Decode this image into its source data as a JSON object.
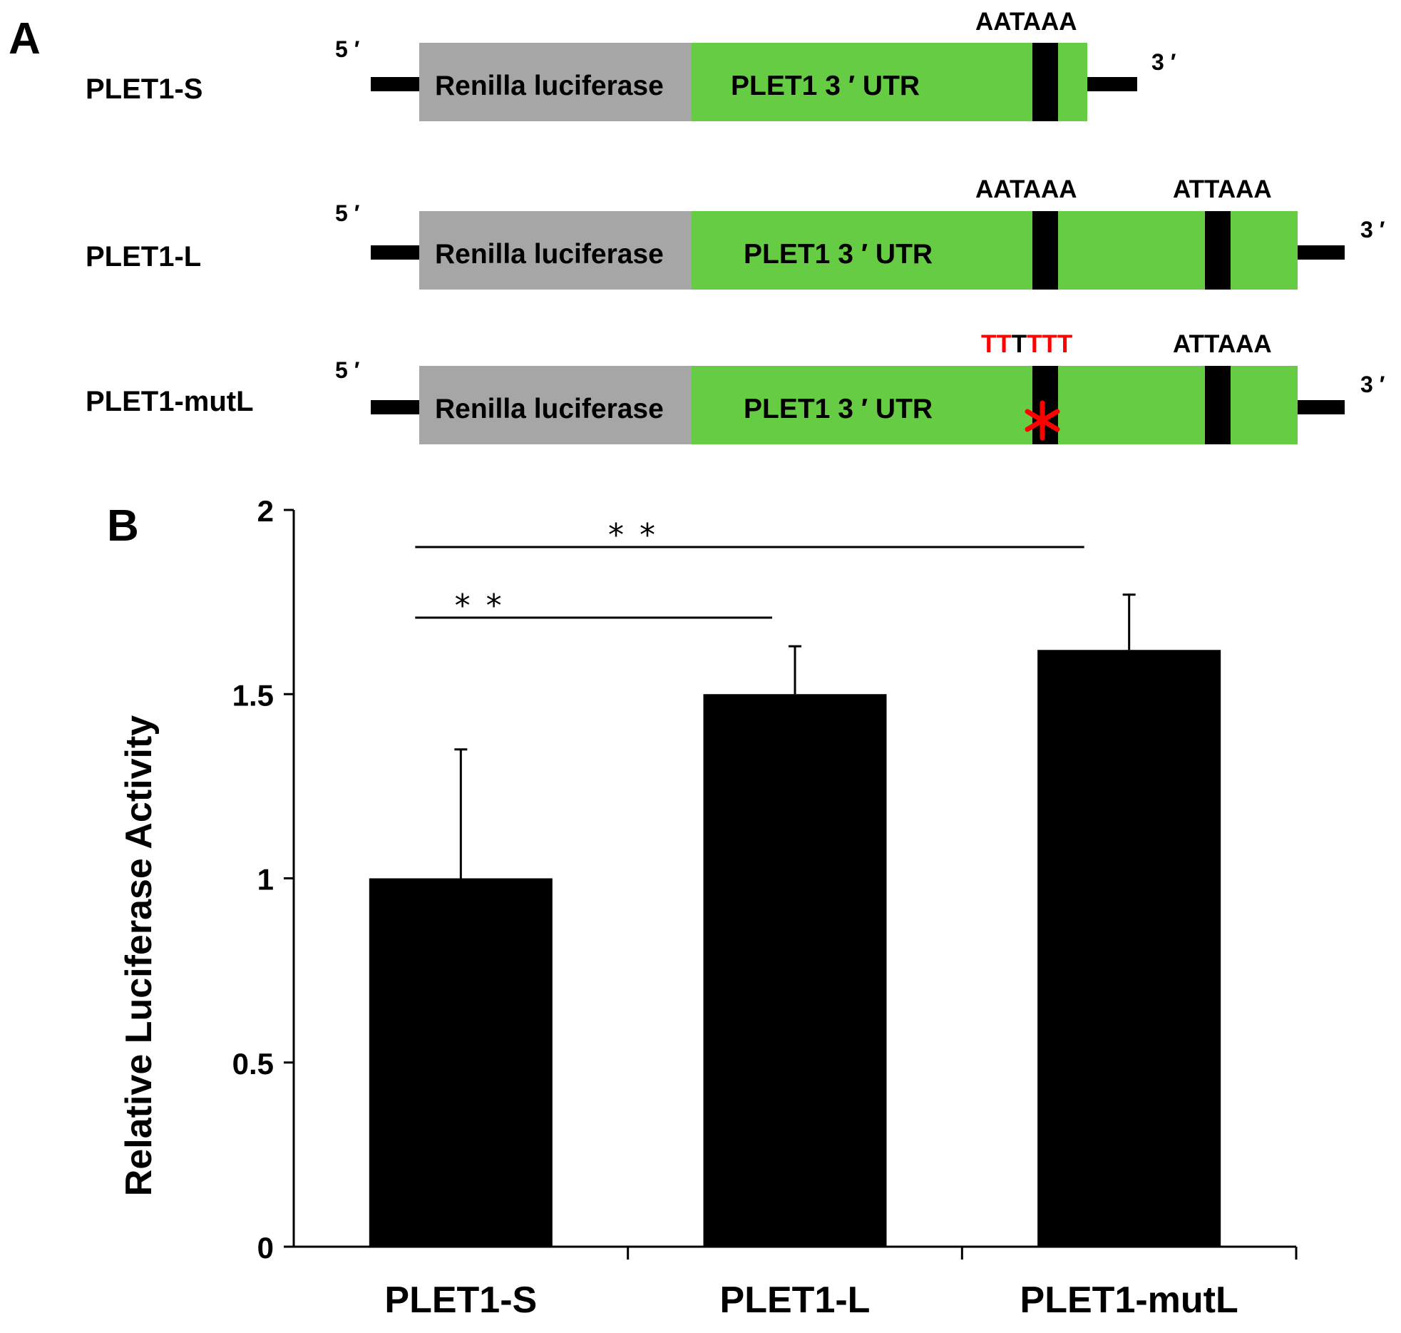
{
  "panel_a": {
    "label": "A",
    "end5": "5 ′",
    "end3": "3 ′",
    "region1_label": "Renilla luciferase",
    "region2_label": "PLET1 3 ′ UTR",
    "colors": {
      "luciferase": "#a6a6a6",
      "utr": "#66cc44",
      "signal": "#000000",
      "mutation": "#ff0000"
    },
    "constructs": [
      {
        "name": "PLET1-S",
        "signals": [
          {
            "text": "AATAAA"
          }
        ]
      },
      {
        "name": "PLET1-L",
        "signals": [
          {
            "text": "AATAAA"
          },
          {
            "text": "ATTAAA"
          }
        ]
      },
      {
        "name": "PLET1-mutL",
        "signals": [
          {
            "text": "",
            "mutated": true,
            "mutant_parts": [
              {
                "t": "TT",
                "mutant": true
              },
              {
                "t": "T",
                "mutant": false
              },
              {
                "t": "TTT",
                "mutant": true
              }
            ]
          },
          {
            "text": "ATTAAA"
          }
        ]
      }
    ]
  },
  "panel_b": {
    "label": "B"
  },
  "chart_data": {
    "type": "bar",
    "categories": [
      "PLET1-S",
      "PLET1-L",
      "PLET1-mutL"
    ],
    "values": [
      1.0,
      1.5,
      1.62
    ],
    "error": [
      0.35,
      0.13,
      0.15
    ],
    "ylabel": "Relative  Luciferase  Activity",
    "xlabel": "",
    "ylim": [
      0,
      2
    ],
    "yticks": [
      "0",
      "0.5",
      "1",
      "1.5",
      "2"
    ],
    "bar_color": "#000000",
    "significance": [
      {
        "from": 0,
        "to": 1,
        "label": "* *"
      },
      {
        "from": 0,
        "to": 2,
        "label": "* *"
      }
    ]
  }
}
